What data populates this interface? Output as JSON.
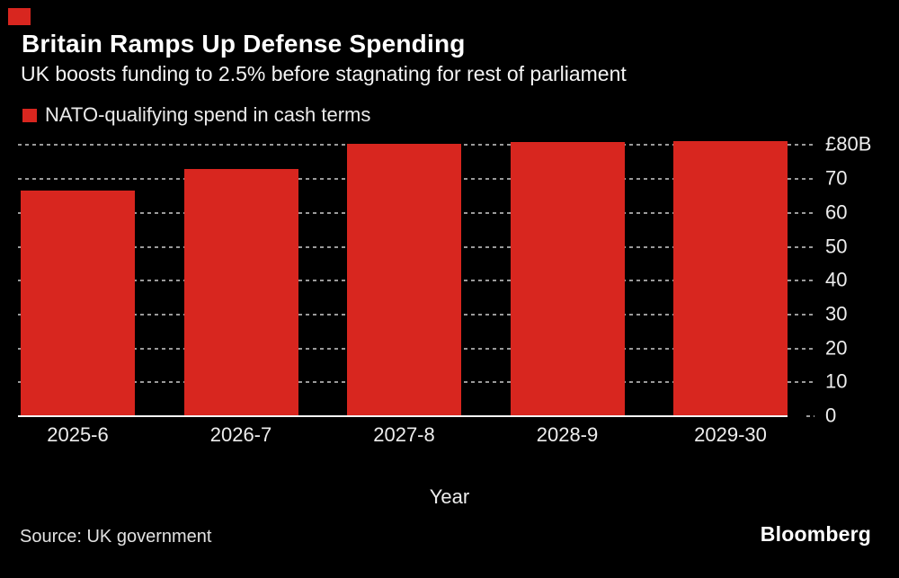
{
  "brand": {
    "accent_color": "#d8261f",
    "mark": "red-square"
  },
  "header": {
    "title": "Britain Ramps Up Defense Spending",
    "subtitle": "UK boosts funding to 2.5% before stagnating for rest of parliament"
  },
  "legend": {
    "label": "NATO-qualifying spend in cash terms",
    "swatch_color": "#d8261f"
  },
  "chart_data": {
    "type": "bar",
    "title": "Britain Ramps Up Defense Spending",
    "subtitle": "UK boosts funding to 2.5% before stagnating for rest of parliament",
    "series_name": "NATO-qualifying spend in cash terms",
    "categories": [
      "2025-6",
      "2026-7",
      "2027-8",
      "2028-9",
      "2029-30"
    ],
    "values": [
      66.2,
      72.8,
      80,
      80.6,
      81
    ],
    "unit": "GBP billions",
    "xlabel": "Year",
    "ylabel": "",
    "ylim": [
      0,
      80
    ],
    "y_tick_values": [
      0,
      10,
      20,
      30,
      40,
      50,
      60,
      70,
      80
    ],
    "y_tick_labels": [
      "0",
      "10",
      "20",
      "30",
      "40",
      "50",
      "60",
      "70",
      "£80B"
    ],
    "y_axis_side": "right",
    "grid": "horizontal-dashed",
    "legend_position": "top-left",
    "bar_color": "#d8261f",
    "gridline_color": "#9a9a9a",
    "background_color": "#000000"
  },
  "footer": {
    "source": "Source: UK government",
    "logo": "Bloomberg"
  }
}
